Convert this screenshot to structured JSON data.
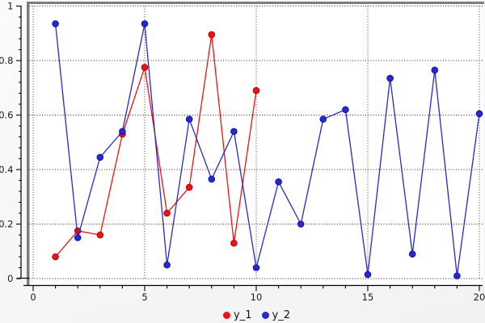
{
  "chart_data": {
    "type": "line",
    "title": "",
    "xlabel": "",
    "ylabel": "",
    "xlim": [
      0,
      20
    ],
    "ylim": [
      0,
      1
    ],
    "xticks": [
      0,
      5,
      10,
      15,
      20
    ],
    "yticks": [
      0,
      0.2,
      0.4,
      0.6,
      0.8,
      1
    ],
    "x_minor_step": 1,
    "y_minor_step": 0.04,
    "grid": "dotted",
    "legend_position": "bottom-center",
    "series": [
      {
        "name": "y_1",
        "color": "#ee1212",
        "edge_color": "#b80000",
        "marker": "circle",
        "x": [
          1,
          2,
          3,
          4,
          5,
          6,
          7,
          8,
          9,
          10
        ],
        "y": [
          0.08,
          0.175,
          0.16,
          0.53,
          0.775,
          0.24,
          0.335,
          0.895,
          0.13,
          0.69
        ]
      },
      {
        "name": "y_2",
        "color": "#2828d2",
        "edge_color": "#1414a0",
        "marker": "circle",
        "x": [
          1,
          2,
          3,
          4,
          5,
          6,
          7,
          8,
          9,
          10,
          11,
          12,
          13,
          14,
          15,
          16,
          17,
          18,
          19,
          20
        ],
        "y": [
          0.935,
          0.15,
          0.445,
          0.54,
          0.935,
          0.05,
          0.585,
          0.365,
          0.54,
          0.04,
          0.355,
          0.2,
          0.585,
          0.62,
          0.015,
          0.735,
          0.09,
          0.765,
          0.01,
          0.605
        ]
      }
    ]
  },
  "colors": {
    "grid": "#262626",
    "axis": "#000000",
    "frame": "#7d7d7d",
    "plot_bg": "#ffffff",
    "tick_label": "#1a1a1a"
  }
}
